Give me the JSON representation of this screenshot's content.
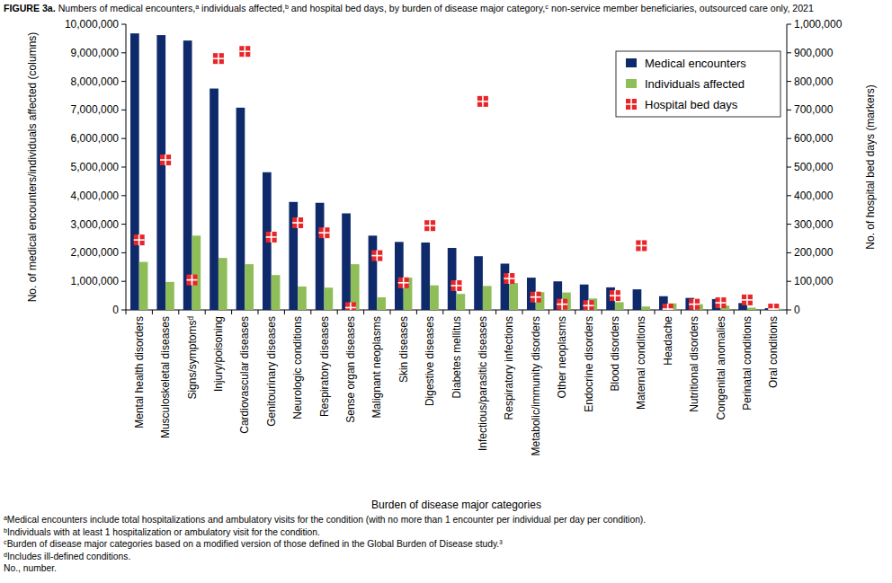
{
  "chart_data": {
    "type": "bar",
    "title": "FIGURE 3a. Numbers of medical encounters,ᵃ individuals affected,ᵇ and hospital bed days, by burden of disease major category,ᶜ non-service member beneficiaries, outsourced care only, 2021",
    "x_label": "Burden of disease major categories",
    "y_label": "No. of medical encounters/individuals affected (columns)",
    "y2_label": "No. of hospital bed days (markers)",
    "footnotes": [
      "ᵃMedical encounters include total hospitalizations and ambulatory visits for the condition (with no more than 1 encounter per individual per day per condition).",
      "ᵇIndividuals with at least 1 hospitalization or ambulatory visit for the condition.",
      "ᶜBurden of disease major categories based on a modified version of those defined in the Global Burden of Disease study.³",
      "ᵈIncludes ill-defined conditions.",
      "No., number."
    ],
    "categories": [
      "Mental health disorders",
      "Musculoskeletal diseases",
      "Signs/symptomsᵈ",
      "Injury/poisoning",
      "Cardiovascular diseases",
      "Genitourinary diseases",
      "Neurologic conditions",
      "Respiratory diseases",
      "Sense organ diseases",
      "Malignant neoplasms",
      "Skin diseases",
      "Digestive diseases",
      "Diabetes mellitus",
      "Infectious/parasitic diseases",
      "Respiratory infections",
      "Metabolic/immunity disorders",
      "Other neoplasms",
      "Endocrine disorders",
      "Blood disorders",
      "Maternal conditions",
      "Headache",
      "Nutritional disorders",
      "Congenital anomalies",
      "Perinatal conditions",
      "Oral conditions"
    ],
    "series": [
      {
        "name": "Medical encounters",
        "color": "#0f2a6b",
        "values": [
          9680000,
          9620000,
          9430000,
          7750000,
          7080000,
          4820000,
          3780000,
          3750000,
          3380000,
          2600000,
          2380000,
          2360000,
          2170000,
          1880000,
          1620000,
          1130000,
          1000000,
          890000,
          790000,
          720000,
          480000,
          420000,
          380000,
          240000,
          60000
        ]
      },
      {
        "name": "Individuals affected",
        "color": "#8fbd58",
        "values": [
          1680000,
          980000,
          2600000,
          1820000,
          1600000,
          1220000,
          820000,
          780000,
          1600000,
          440000,
          1130000,
          860000,
          560000,
          840000,
          940000,
          620000,
          610000,
          400000,
          270000,
          120000,
          230000,
          200000,
          150000,
          80000,
          40000
        ]
      },
      {
        "name": "Hospital bed days",
        "type": "scatter",
        "marker": "square",
        "axis": "y2",
        "color": "#e8262a",
        "values": [
          245000,
          525000,
          105000,
          880000,
          905000,
          255000,
          305000,
          270000,
          8000,
          190000,
          95000,
          295000,
          85000,
          730000,
          110000,
          45000,
          20000,
          15000,
          50000,
          225000,
          3000,
          20000,
          25000,
          35000,
          3000
        ]
      }
    ],
    "ylim": [
      0,
      10000000
    ],
    "yticks": [
      {
        "value": 0,
        "label": "0"
      },
      {
        "value": 1000000,
        "label": "1,000,000"
      },
      {
        "value": 2000000,
        "label": "2,000,000"
      },
      {
        "value": 3000000,
        "label": "3,000,000"
      },
      {
        "value": 4000000,
        "label": "4,000,000"
      },
      {
        "value": 5000000,
        "label": "5,000,000"
      },
      {
        "value": 6000000,
        "label": "6,000,000"
      },
      {
        "value": 7000000,
        "label": "7,000,000"
      },
      {
        "value": 8000000,
        "label": "8,000,000"
      },
      {
        "value": 9000000,
        "label": "9,000,000"
      },
      {
        "value": 10000000,
        "label": "10,000,000"
      }
    ],
    "y2lim": [
      0,
      1000000
    ],
    "y2ticks": [
      {
        "value": 0,
        "label": "0"
      },
      {
        "value": 100000,
        "label": "100,000"
      },
      {
        "value": 200000,
        "label": "200,000"
      },
      {
        "value": 300000,
        "label": "300,000"
      },
      {
        "value": 400000,
        "label": "400,000"
      },
      {
        "value": 500000,
        "label": "500,000"
      },
      {
        "value": 600000,
        "label": "600,000"
      },
      {
        "value": 700000,
        "label": "700,000"
      },
      {
        "value": 800000,
        "label": "800,000"
      },
      {
        "value": 900000,
        "label": "900,000"
      },
      {
        "value": 1000000,
        "label": "1,000,000"
      }
    ],
    "grid": false,
    "legend": "upper right"
  }
}
